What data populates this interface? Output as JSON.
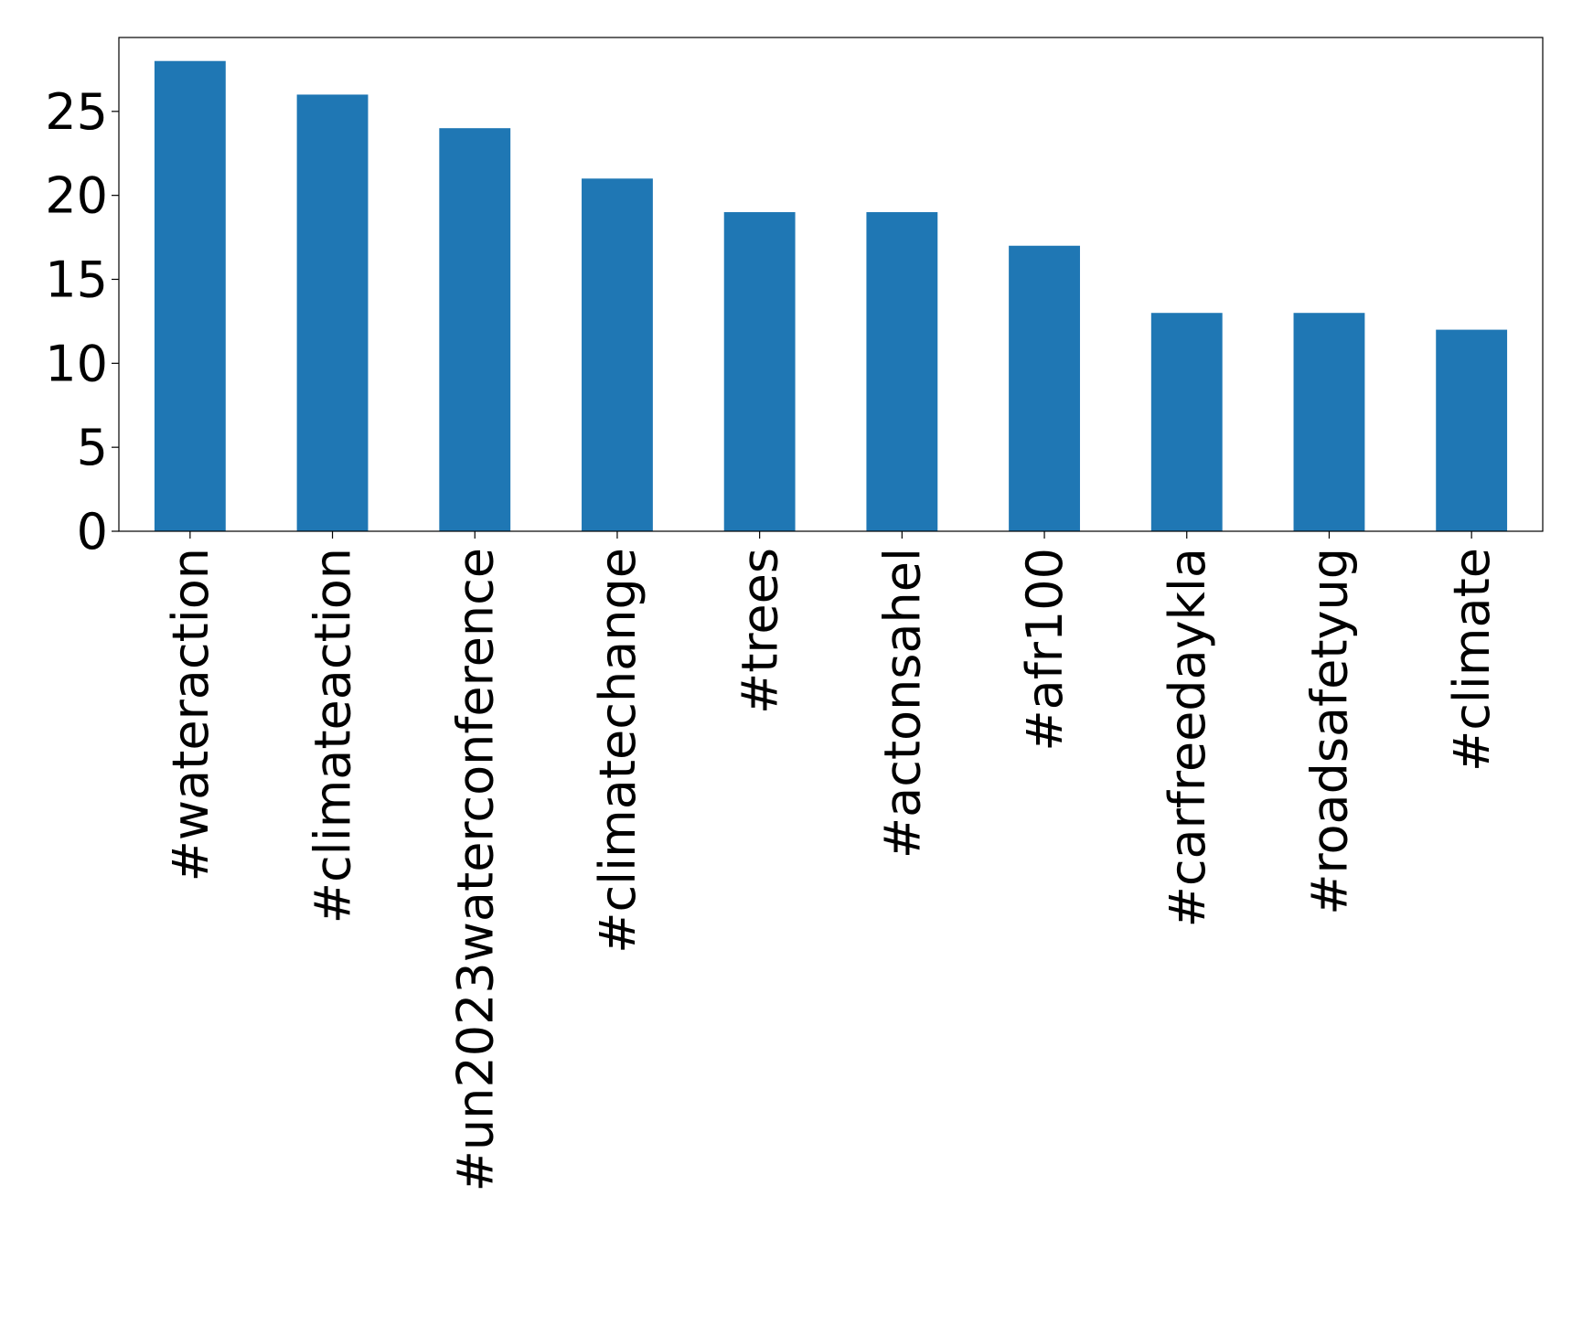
{
  "chart_data": {
    "type": "bar",
    "categories": [
      "#wateraction",
      "#climateaction",
      "#un2023waterconference",
      "#climatechange",
      "#trees",
      "#actonsahel",
      "#afr100",
      "#carfreedaykla",
      "#roadsafetyug",
      "#climate"
    ],
    "values": [
      28,
      26,
      24,
      21,
      19,
      19,
      17,
      13,
      13,
      12
    ],
    "color": "#1f77b4",
    "ylim": [
      0,
      29.4
    ],
    "yticks": [
      0,
      5,
      10,
      15,
      20,
      25
    ],
    "grid": false
  }
}
